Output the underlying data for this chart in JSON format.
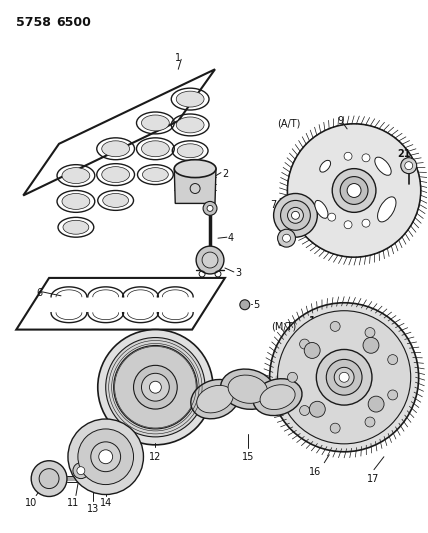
{
  "title_part1": "5758",
  "title_part2": "6500",
  "bg_color": "#ffffff",
  "line_color": "#1a1a1a",
  "text_color": "#111111",
  "figsize": [
    4.28,
    5.33
  ],
  "dpi": 100
}
